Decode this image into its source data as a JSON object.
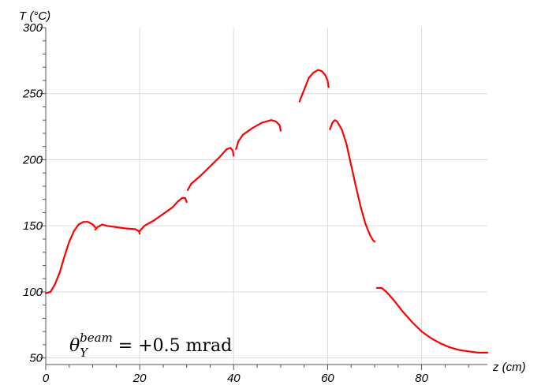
{
  "chart_data": {
    "type": "line",
    "title": "",
    "xlabel": "z (cm)",
    "ylabel": "T (°C)",
    "xlim": [
      0,
      94
    ],
    "ylim": [
      45,
      300
    ],
    "x_ticks": [
      0,
      20,
      40,
      60,
      80
    ],
    "y_ticks": [
      50,
      100,
      150,
      200,
      250,
      300
    ],
    "grid": true,
    "line_color": "#ff0000",
    "grid_color": "#dcdcdc",
    "annotation": {
      "theta": "θ",
      "sub": "Y",
      "sup": "beam",
      "rest": " = +0.5 mrad"
    },
    "series": [
      {
        "segments": [
          [
            [
              0,
              99
            ],
            [
              1,
              100
            ],
            [
              2,
              106
            ],
            [
              3,
              115
            ],
            [
              4,
              127
            ],
            [
              5,
              138
            ],
            [
              6,
              146
            ],
            [
              7,
              151
            ],
            [
              8,
              153
            ],
            [
              9,
              153
            ],
            [
              10,
              151
            ],
            [
              10.5,
              149
            ]
          ],
          [
            [
              10.5,
              147
            ],
            [
              11,
              149
            ],
            [
              12,
              151
            ],
            [
              13,
              150
            ],
            [
              15,
              149
            ],
            [
              17,
              148
            ],
            [
              19,
              147.5
            ],
            [
              19.8,
              146
            ],
            [
              20,
              144
            ]
          ],
          [
            [
              20,
              146
            ],
            [
              21,
              150
            ],
            [
              23,
              154
            ],
            [
              25,
              159
            ],
            [
              27,
              164
            ],
            [
              28,
              168
            ],
            [
              29,
              171
            ],
            [
              29.7,
              171
            ],
            [
              30,
              168
            ]
          ],
          [
            [
              30.2,
              177
            ],
            [
              31,
              182
            ],
            [
              33,
              188
            ],
            [
              35,
              195
            ],
            [
              37,
              202
            ],
            [
              38.5,
              208
            ],
            [
              39.3,
              209
            ],
            [
              39.8,
              207
            ],
            [
              40,
              203
            ]
          ],
          [
            [
              40.5,
              208
            ],
            [
              41,
              214
            ],
            [
              42,
              219
            ],
            [
              44,
              224
            ],
            [
              46,
              228
            ],
            [
              48,
              230
            ],
            [
              49,
              229
            ],
            [
              49.8,
              226
            ],
            [
              50,
              222
            ]
          ],
          [
            [
              54,
              244
            ],
            [
              55,
              253
            ],
            [
              56,
              262
            ],
            [
              57,
              266
            ],
            [
              58,
              268
            ],
            [
              58.8,
              267
            ],
            [
              59.5,
              264
            ],
            [
              60,
              260
            ],
            [
              60.2,
              255
            ]
          ],
          [
            [
              60.5,
              223
            ],
            [
              61,
              228
            ],
            [
              61.5,
              230
            ],
            [
              62,
              229
            ],
            [
              63,
              223
            ],
            [
              64,
              212
            ],
            [
              65,
              196
            ],
            [
              66,
              180
            ],
            [
              67,
              165
            ],
            [
              68,
              152
            ],
            [
              69,
              143
            ],
            [
              69.7,
              139
            ],
            [
              70,
              138
            ]
          ],
          [
            [
              70.5,
              103
            ],
            [
              71.5,
              103
            ],
            [
              72.5,
              100
            ],
            [
              74,
              94
            ],
            [
              76,
              85
            ],
            [
              78,
              77
            ],
            [
              80,
              70
            ],
            [
              82,
              65
            ],
            [
              84,
              61
            ],
            [
              86,
              58
            ],
            [
              88,
              56
            ],
            [
              90,
              55
            ],
            [
              92,
              54
            ],
            [
              94,
              54
            ]
          ]
        ]
      }
    ]
  }
}
